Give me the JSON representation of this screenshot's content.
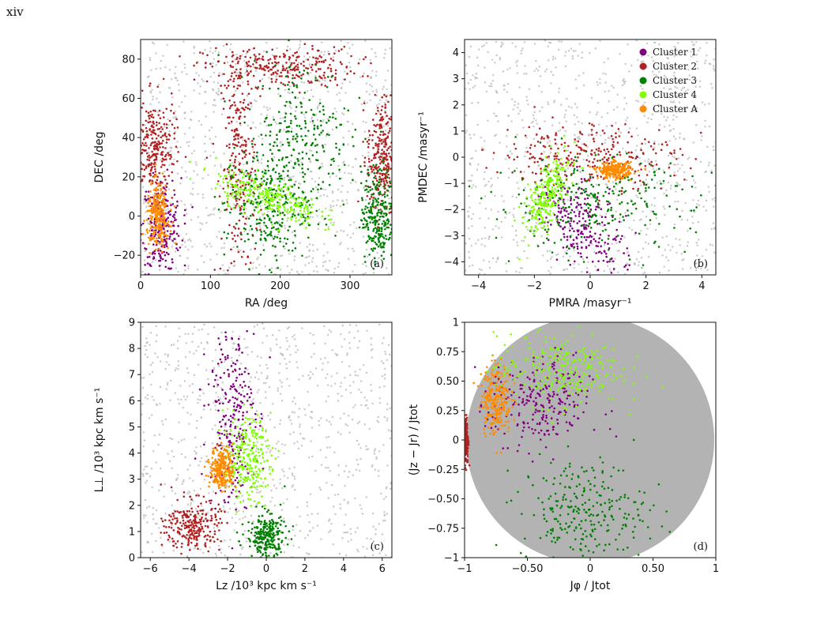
{
  "page_label": "xiv",
  "colors": {
    "background": "#b3b3b3",
    "Cluster 1": "#800080",
    "Cluster 2": "#b22222",
    "Cluster 3": "#008000",
    "Cluster 4": "#7fff00",
    "Cluster A": "#ff8c00"
  },
  "legend": {
    "placement": "top-right of panel (b)",
    "entries": [
      "Cluster 1",
      "Cluster 2",
      "Cluster 3",
      "Cluster 4",
      "Cluster A"
    ]
  },
  "chart_data": [
    {
      "type": "scatter",
      "panel": "(a)",
      "xlabel": "RA /deg",
      "ylabel": "DEC /deg",
      "xlim": [
        0,
        360
      ],
      "ylim": [
        -30,
        90
      ],
      "xticks": [
        0,
        100,
        200,
        300
      ],
      "yticks": [
        -20,
        0,
        20,
        40,
        60,
        80
      ],
      "grid": false,
      "series": [
        {
          "name": "Cluster 1",
          "regions": [
            {
              "x": 30,
              "y": -5,
              "sx": 14,
              "sy": 12
            }
          ]
        },
        {
          "name": "Cluster 2",
          "regions": [
            {
              "x": 200,
              "y": 76,
              "sx": 55,
              "sy": 5
            },
            {
              "x": 140,
              "y": 25,
              "sx": 12,
              "sy": 30
            },
            {
              "x": 20,
              "y": 35,
              "sx": 15,
              "sy": 12
            },
            {
              "x": 345,
              "y": 30,
              "sx": 10,
              "sy": 15
            }
          ]
        },
        {
          "name": "Cluster 3",
          "regions": [
            {
              "x": 230,
              "y": 40,
              "sx": 35,
              "sy": 20
            },
            {
              "x": 180,
              "y": 5,
              "sx": 30,
              "sy": 15
            },
            {
              "x": 340,
              "y": 0,
              "sx": 12,
              "sy": 12
            }
          ]
        },
        {
          "name": "Cluster 4",
          "regions": [
            {
              "x": 180,
              "y": 10,
              "sx": 40,
              "sy": 5,
              "tilt": -0.35
            }
          ]
        },
        {
          "name": "Cluster A",
          "regions": [
            {
              "x": 25,
              "y": 0,
              "sx": 8,
              "sy": 8
            }
          ]
        }
      ]
    },
    {
      "type": "scatter",
      "panel": "(b)",
      "xlabel": "PMRA /masyr⁻¹",
      "ylabel": "PMDEC /masyr⁻¹",
      "xlim": [
        -4.5,
        4.5
      ],
      "ylim": [
        -4.5,
        4.5
      ],
      "xticks": [
        -4,
        -2,
        0,
        2,
        4
      ],
      "yticks": [
        -4,
        -3,
        -2,
        -1,
        0,
        1,
        2,
        3,
        4
      ],
      "grid": false,
      "series": [
        {
          "name": "Cluster 1",
          "regions": [
            {
              "x": -0.3,
              "y": -2.5,
              "sx": 0.6,
              "sy": 1.0,
              "tilt": 0.6
            }
          ]
        },
        {
          "name": "Cluster 2",
          "regions": [
            {
              "x": 0.0,
              "y": 0.1,
              "sx": 1.6,
              "sy": 0.6
            }
          ]
        },
        {
          "name": "Cluster 3",
          "regions": [
            {
              "x": 0.0,
              "y": -1.8,
              "sx": 1.8,
              "sy": 0.9
            }
          ]
        },
        {
          "name": "Cluster 4",
          "regions": [
            {
              "x": -1.5,
              "y": -1.4,
              "sx": 0.3,
              "sy": 0.8,
              "tilt": -0.4
            }
          ]
        },
        {
          "name": "Cluster A",
          "regions": [
            {
              "x": 0.9,
              "y": -0.5,
              "sx": 0.3,
              "sy": 0.15
            }
          ]
        }
      ]
    },
    {
      "type": "scatter",
      "panel": "(c)",
      "xlabel": "Lz /10³ kpc km s⁻¹",
      "ylabel": "L⊥ /10³ kpc km s⁻¹",
      "xlim": [
        -6.5,
        6.5
      ],
      "ylim": [
        0,
        9
      ],
      "xticks": [
        -6,
        -4,
        -2,
        0,
        2,
        4,
        6
      ],
      "yticks": [
        0,
        1,
        2,
        3,
        4,
        5,
        6,
        7,
        8,
        9
      ],
      "grid": false,
      "series": [
        {
          "name": "Cluster 1",
          "regions": [
            {
              "x": -1.8,
              "y": 5.5,
              "sx": 0.6,
              "sy": 1.8
            }
          ]
        },
        {
          "name": "Cluster 2",
          "regions": [
            {
              "x": -3.8,
              "y": 1.2,
              "sx": 0.7,
              "sy": 0.5
            }
          ]
        },
        {
          "name": "Cluster 3",
          "regions": [
            {
              "x": 0.0,
              "y": 0.8,
              "sx": 0.5,
              "sy": 0.45
            }
          ]
        },
        {
          "name": "Cluster 4",
          "regions": [
            {
              "x": -1.0,
              "y": 3.8,
              "sx": 0.6,
              "sy": 0.8
            }
          ]
        },
        {
          "name": "Cluster A",
          "regions": [
            {
              "x": -2.3,
              "y": 3.4,
              "sx": 0.3,
              "sy": 0.4
            }
          ]
        }
      ]
    },
    {
      "type": "scatter",
      "panel": "(d)",
      "xlabel": "Jφ / Jtot",
      "ylabel": "(Jz − Jr) / Jtot",
      "xlim": [
        -1.0,
        1.0
      ],
      "ylim": [
        -1.0,
        1.0
      ],
      "xticks": [
        -1.0,
        -0.5,
        0.0,
        0.5,
        1.0
      ],
      "yticks": [
        -1.0,
        -0.75,
        -0.5,
        -0.25,
        0.0,
        0.25,
        0.5,
        0.75,
        1.0
      ],
      "grid": false,
      "series": [
        {
          "name": "Cluster 1",
          "regions": [
            {
              "x": -0.4,
              "y": 0.3,
              "sx": 0.2,
              "sy": 0.2
            }
          ]
        },
        {
          "name": "Cluster 2",
          "regions": [
            {
              "x": -0.99,
              "y": 0.0,
              "sx": 0.01,
              "sy": 0.1
            }
          ]
        },
        {
          "name": "Cluster 3",
          "regions": [
            {
              "x": -0.05,
              "y": -0.6,
              "sx": 0.25,
              "sy": 0.22
            }
          ]
        },
        {
          "name": "Cluster 4",
          "regions": [
            {
              "x": -0.25,
              "y": 0.6,
              "sx": 0.25,
              "sy": 0.15
            }
          ]
        },
        {
          "name": "Cluster A",
          "regions": [
            {
              "x": -0.75,
              "y": 0.35,
              "sx": 0.06,
              "sy": 0.15
            }
          ]
        }
      ]
    }
  ]
}
